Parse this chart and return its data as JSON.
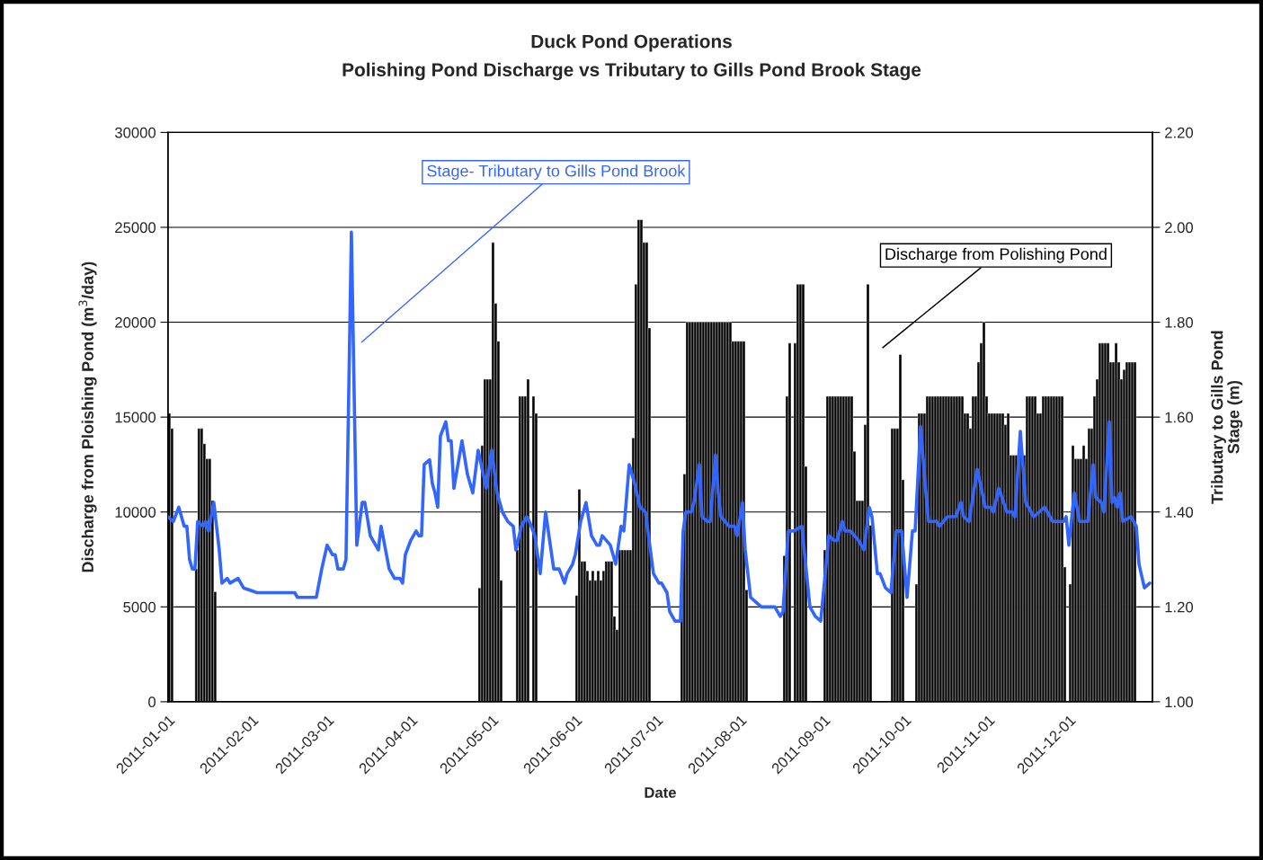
{
  "chart_data": {
    "type": "bar",
    "title": "Duck Pond Operations",
    "subtitle": "Polishing Pond Discharge vs Tributary to Gills Pond Brook Stage",
    "xlabel": "Date",
    "ylabel": "Discharge from Ploishing Pond (m$^{3}$/day)",
    "y2label": "Tributary to Gills Pond\nStage (m)",
    "xlim": [
      "2011-01-01",
      "2012-01-01"
    ],
    "xticks": [
      "2011-01-01",
      "2011-02-01",
      "2011-03-01",
      "2011-04-01",
      "2011-05-01",
      "2011-06-01",
      "2011-07-01",
      "2011-08-01",
      "2011-09-01",
      "2011-10-01",
      "2011-11-01",
      "2011-12-01"
    ],
    "ylim": [
      0,
      30000
    ],
    "yticks": [
      0,
      5000,
      10000,
      15000,
      20000,
      25000,
      30000
    ],
    "y2lim": [
      1.0,
      2.2
    ],
    "y2ticks": [
      {
        "value": 1.0,
        "label": "1.00"
      },
      {
        "value": 1.2,
        "label": "1.20"
      },
      {
        "value": 1.4,
        "label": "1.40"
      },
      {
        "value": 1.6,
        "label": "1.60"
      },
      {
        "value": 1.8,
        "label": "1.80"
      },
      {
        "value": 2.0,
        "label": "2.00"
      },
      {
        "value": 2.2,
        "label": "2.20"
      }
    ],
    "grid": "y",
    "legend": false,
    "series": [
      {
        "type": "line",
        "axis": "y2",
        "color": "#3366ff",
        "x": [
          "2011-01-01",
          "2011-01-03",
          "2011-01-05",
          "2011-01-07",
          "2011-01-08",
          "2011-01-09",
          "2011-01-10",
          "2011-01-11",
          "2011-01-12",
          "2011-01-14",
          "2011-01-15",
          "2011-01-16",
          "2011-01-18",
          "2011-01-20",
          "2011-01-21",
          "2011-01-23",
          "2011-01-24",
          "2011-01-27",
          "2011-01-29",
          "2011-02-03",
          "2011-02-17",
          "2011-02-18",
          "2011-02-25",
          "2011-02-27",
          "2011-03-01",
          "2011-03-03",
          "2011-03-04",
          "2011-03-05",
          "2011-03-07",
          "2011-03-08",
          "2011-03-10",
          "2011-03-12",
          "2011-03-14",
          "2011-03-15",
          "2011-03-17",
          "2011-03-18",
          "2011-03-20",
          "2011-03-21",
          "2011-03-23",
          "2011-03-24",
          "2011-03-26",
          "2011-03-28",
          "2011-03-29",
          "2011-03-30",
          "2011-04-01",
          "2011-04-03",
          "2011-04-04",
          "2011-04-05",
          "2011-04-06",
          "2011-04-08",
          "2011-04-09",
          "2011-04-10",
          "2011-04-11",
          "2011-04-12",
          "2011-04-14",
          "2011-04-15",
          "2011-04-16",
          "2011-04-17",
          "2011-04-20",
          "2011-04-22",
          "2011-04-24",
          "2011-04-26",
          "2011-04-29",
          "2011-05-01",
          "2011-05-03",
          "2011-05-05",
          "2011-05-07",
          "2011-05-09",
          "2011-05-10",
          "2011-05-12",
          "2011-05-14",
          "2011-05-15",
          "2011-05-17",
          "2011-05-19",
          "2011-05-21",
          "2011-05-23",
          "2011-05-24",
          "2011-05-26",
          "2011-05-28",
          "2011-05-29",
          "2011-05-31",
          "2011-06-01",
          "2011-06-03",
          "2011-06-05",
          "2011-06-07",
          "2011-06-09",
          "2011-06-10",
          "2011-06-11",
          "2011-06-14",
          "2011-06-16",
          "2011-06-18",
          "2011-06-19",
          "2011-06-21",
          "2011-06-23",
          "2011-06-25",
          "2011-06-27",
          "2011-06-30",
          "2011-07-02",
          "2011-07-03",
          "2011-07-05",
          "2011-07-06",
          "2011-07-08",
          "2011-07-10",
          "2011-07-11",
          "2011-07-12",
          "2011-07-14",
          "2011-07-15",
          "2011-07-17",
          "2011-07-18",
          "2011-07-20",
          "2011-07-21",
          "2011-07-23",
          "2011-07-24",
          "2011-07-25",
          "2011-07-28",
          "2011-07-30",
          "2011-07-31",
          "2011-08-02",
          "2011-08-03",
          "2011-08-05",
          "2011-08-07",
          "2011-08-09",
          "2011-08-14",
          "2011-08-16",
          "2011-08-17",
          "2011-08-19",
          "2011-08-21",
          "2011-08-24",
          "2011-08-27",
          "2011-08-29",
          "2011-08-31",
          "2011-09-03",
          "2011-09-05",
          "2011-09-06",
          "2011-09-08",
          "2011-09-09",
          "2011-09-11",
          "2011-09-14",
          "2011-09-16",
          "2011-09-18",
          "2011-09-19",
          "2011-09-21",
          "2011-09-22",
          "2011-09-24",
          "2011-09-26",
          "2011-09-28",
          "2011-09-30",
          "2011-10-02",
          "2011-10-04",
          "2011-10-05",
          "2011-10-07",
          "2011-10-09",
          "2011-10-10",
          "2011-10-13",
          "2011-10-14",
          "2011-10-17",
          "2011-10-20",
          "2011-10-22",
          "2011-10-23",
          "2011-10-25",
          "2011-10-28",
          "2011-10-31",
          "2011-11-02",
          "2011-11-03",
          "2011-11-05",
          "2011-11-08",
          "2011-11-10",
          "2011-11-11",
          "2011-11-13",
          "2011-11-15",
          "2011-11-18",
          "2011-11-20",
          "2011-11-22",
          "2011-11-25",
          "2011-11-29",
          "2011-11-30",
          "2011-12-01",
          "2011-12-03",
          "2011-12-05",
          "2011-12-08",
          "2011-12-10",
          "2011-12-11",
          "2011-12-13",
          "2011-12-14",
          "2011-12-16",
          "2011-12-17",
          "2011-12-18",
          "2011-12-19",
          "2011-12-20",
          "2011-12-21",
          "2011-12-24",
          "2011-12-26",
          "2011-12-27",
          "2011-12-29",
          "2011-12-31"
        ],
        "values": [
          1.39,
          1.38,
          1.41,
          1.37,
          1.37,
          1.3,
          1.28,
          1.28,
          1.38,
          1.37,
          1.38,
          1.36,
          1.42,
          1.32,
          1.25,
          1.26,
          1.25,
          1.26,
          1.24,
          1.23,
          1.23,
          1.22,
          1.22,
          1.28,
          1.33,
          1.31,
          1.31,
          1.28,
          1.28,
          1.3,
          1.99,
          1.33,
          1.42,
          1.42,
          1.35,
          1.34,
          1.32,
          1.37,
          1.31,
          1.28,
          1.26,
          1.26,
          1.25,
          1.31,
          1.34,
          1.36,
          1.35,
          1.35,
          1.5,
          1.51,
          1.46,
          1.44,
          1.41,
          1.56,
          1.59,
          1.55,
          1.55,
          1.45,
          1.55,
          1.48,
          1.44,
          1.53,
          1.45,
          1.53,
          1.44,
          1.4,
          1.38,
          1.37,
          1.32,
          1.37,
          1.39,
          1.38,
          1.35,
          1.27,
          1.4,
          1.32,
          1.28,
          1.28,
          1.25,
          1.27,
          1.29,
          1.31,
          1.38,
          1.42,
          1.35,
          1.33,
          1.33,
          1.35,
          1.33,
          1.29,
          1.37,
          1.36,
          1.5,
          1.46,
          1.41,
          1.4,
          1.27,
          1.25,
          1.25,
          1.23,
          1.19,
          1.17,
          1.17,
          1.36,
          1.4,
          1.4,
          1.42,
          1.5,
          1.39,
          1.38,
          1.38,
          1.52,
          1.44,
          1.39,
          1.37,
          1.37,
          1.35,
          1.42,
          1.32,
          1.22,
          1.21,
          1.2,
          1.2,
          1.18,
          1.19,
          1.36,
          1.36,
          1.37,
          1.2,
          1.18,
          1.17,
          1.35,
          1.34,
          1.34,
          1.38,
          1.36,
          1.36,
          1.34,
          1.32,
          1.41,
          1.39,
          1.27,
          1.27,
          1.24,
          1.23,
          1.36,
          1.36,
          1.22,
          1.36,
          1.36,
          1.58,
          1.44,
          1.38,
          1.38,
          1.37,
          1.39,
          1.39,
          1.42,
          1.39,
          1.38,
          1.49,
          1.41,
          1.41,
          1.4,
          1.45,
          1.4,
          1.4,
          1.39,
          1.57,
          1.42,
          1.39,
          1.4,
          1.41,
          1.38,
          1.38,
          1.39,
          1.33,
          1.44,
          1.38,
          1.38,
          1.5,
          1.43,
          1.42,
          1.4,
          1.59,
          1.42,
          1.43,
          1.41,
          1.44,
          1.38,
          1.39,
          1.37,
          1.29,
          1.24,
          1.25
        ]
      },
      {
        "color": "#000000",
        "x": [
          "2011-01-01",
          "2011-01-02",
          "2011-01-11",
          "2011-01-12",
          "2011-01-13",
          "2011-01-14",
          "2011-01-15",
          "2011-01-16",
          "2011-01-17",
          "2011-01-18",
          "2011-04-26",
          "2011-04-27",
          "2011-04-28",
          "2011-04-29",
          "2011-04-30",
          "2011-05-01",
          "2011-05-02",
          "2011-05-03",
          "2011-05-04",
          "2011-05-10",
          "2011-05-11",
          "2011-05-12",
          "2011-05-13",
          "2011-05-14",
          "2011-05-16",
          "2011-05-17",
          "2011-06-01",
          "2011-06-02",
          "2011-06-03",
          "2011-06-04",
          "2011-06-05",
          "2011-06-06",
          "2011-06-07",
          "2011-06-08",
          "2011-06-09",
          "2011-06-10",
          "2011-06-11",
          "2011-06-12",
          "2011-06-13",
          "2011-06-14",
          "2011-06-15",
          "2011-06-16",
          "2011-06-17",
          "2011-06-18",
          "2011-06-19",
          "2011-06-20",
          "2011-06-21",
          "2011-06-22",
          "2011-06-23",
          "2011-06-24",
          "2011-06-25",
          "2011-06-26",
          "2011-06-27",
          "2011-06-28",
          "2011-07-10",
          "2011-07-11",
          "2011-07-12",
          "2011-07-13",
          "2011-07-14",
          "2011-07-15",
          "2011-07-16",
          "2011-07-17",
          "2011-07-18",
          "2011-07-19",
          "2011-07-20",
          "2011-07-21",
          "2011-07-22",
          "2011-07-23",
          "2011-07-24",
          "2011-07-25",
          "2011-07-26",
          "2011-07-27",
          "2011-07-28",
          "2011-07-29",
          "2011-07-30",
          "2011-07-31",
          "2011-08-01",
          "2011-08-02",
          "2011-08-03",
          "2011-08-17",
          "2011-08-18",
          "2011-08-19",
          "2011-08-21",
          "2011-08-22",
          "2011-08-23",
          "2011-08-24",
          "2011-08-25",
          "2011-09-01",
          "2011-09-02",
          "2011-09-03",
          "2011-09-04",
          "2011-09-05",
          "2011-09-06",
          "2011-09-07",
          "2011-09-08",
          "2011-09-09",
          "2011-09-10",
          "2011-09-11",
          "2011-09-12",
          "2011-09-13",
          "2011-09-14",
          "2011-09-15",
          "2011-09-16",
          "2011-09-17",
          "2011-09-18",
          "2011-09-26",
          "2011-09-27",
          "2011-09-28",
          "2011-09-29",
          "2011-09-30",
          "2011-10-05",
          "2011-10-06",
          "2011-10-07",
          "2011-10-08",
          "2011-10-09",
          "2011-10-10",
          "2011-10-11",
          "2011-10-12",
          "2011-10-13",
          "2011-10-14",
          "2011-10-15",
          "2011-10-16",
          "2011-10-17",
          "2011-10-18",
          "2011-10-19",
          "2011-10-20",
          "2011-10-21",
          "2011-10-22",
          "2011-10-23",
          "2011-10-24",
          "2011-10-25",
          "2011-10-26",
          "2011-10-27",
          "2011-10-28",
          "2011-10-29",
          "2011-10-30",
          "2011-10-31",
          "2011-11-01",
          "2011-11-02",
          "2011-11-03",
          "2011-11-04",
          "2011-11-05",
          "2011-11-06",
          "2011-11-07",
          "2011-11-08",
          "2011-11-09",
          "2011-11-10",
          "2011-11-11",
          "2011-11-12",
          "2011-11-13",
          "2011-11-14",
          "2011-11-15",
          "2011-11-16",
          "2011-11-17",
          "2011-11-18",
          "2011-11-19",
          "2011-11-20",
          "2011-11-21",
          "2011-11-22",
          "2011-11-23",
          "2011-11-24",
          "2011-11-25",
          "2011-11-26",
          "2011-11-27",
          "2011-11-28",
          "2011-11-29",
          "2011-12-01",
          "2011-12-02",
          "2011-12-03",
          "2011-12-04",
          "2011-12-05",
          "2011-12-06",
          "2011-12-07",
          "2011-12-08",
          "2011-12-09",
          "2011-12-10",
          "2011-12-11",
          "2011-12-12",
          "2011-12-13",
          "2011-12-14",
          "2011-12-15",
          "2011-12-16",
          "2011-12-17",
          "2011-12-18",
          "2011-12-19",
          "2011-12-20",
          "2011-12-21",
          "2011-12-22",
          "2011-12-23",
          "2011-12-24",
          "2011-12-25"
        ],
        "values": [
          15200,
          14400,
          7000,
          14400,
          14400,
          13600,
          12800,
          12800,
          10600,
          5800,
          6000,
          13500,
          17000,
          17000,
          17000,
          24200,
          21000,
          19000,
          6400,
          8000,
          16100,
          16100,
          16100,
          17000,
          16100,
          15200,
          5600,
          11200,
          7400,
          7400,
          6900,
          6400,
          6900,
          6400,
          6900,
          6400,
          6900,
          7400,
          7400,
          7400,
          4500,
          3800,
          8000,
          8000,
          8000,
          8000,
          8000,
          13900,
          22000,
          25400,
          25400,
          24200,
          24200,
          19700,
          6200,
          12000,
          20000,
          20000,
          20000,
          20000,
          20000,
          20000,
          20000,
          20000,
          20000,
          20000,
          20000,
          20000,
          20000,
          20000,
          20000,
          20000,
          20000,
          19000,
          19000,
          19000,
          19000,
          19000,
          5900,
          7700,
          16100,
          18900,
          18900,
          22000,
          22000,
          22000,
          12400,
          8000,
          16100,
          16100,
          16100,
          16100,
          16100,
          16100,
          16100,
          16100,
          16100,
          16100,
          13200,
          10600,
          10600,
          10600,
          14600,
          22000,
          9300,
          14400,
          14400,
          14400,
          18300,
          11700,
          6200,
          15200,
          15200,
          15200,
          16100,
          16100,
          16100,
          16100,
          16100,
          16100,
          16100,
          16100,
          16100,
          16100,
          16100,
          16100,
          16100,
          16100,
          15200,
          15200,
          14400,
          16100,
          16100,
          17900,
          18900,
          20000,
          16100,
          15200,
          15200,
          15200,
          15200,
          15200,
          15200,
          14600,
          15200,
          13000,
          13000,
          13000,
          13000,
          13000,
          13000,
          16100,
          16100,
          16100,
          16100,
          15200,
          15200,
          16100,
          16100,
          16100,
          16100,
          16100,
          16100,
          16100,
          16100,
          7100,
          6200,
          13500,
          12800,
          12800,
          12800,
          13500,
          12800,
          14400,
          14400,
          16100,
          17000,
          18900,
          18900,
          18900,
          18900,
          17900,
          17900,
          18900,
          17900,
          17000,
          17500,
          17900,
          17900,
          17900,
          17900
        ]
      }
    ],
    "annotations": [
      "Stage- Tributary to Gills Pond Brook",
      "Discharge from Polishing Pond"
    ]
  }
}
